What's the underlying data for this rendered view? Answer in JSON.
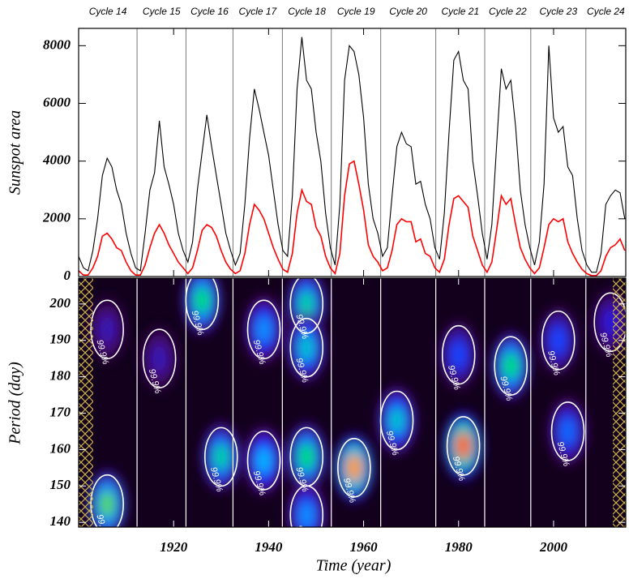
{
  "chart_data": [
    {
      "type": "line",
      "ylabel": "Sunspot area",
      "xlim": [
        1900,
        2015.2
      ],
      "ylim": [
        0,
        8600
      ],
      "yticks": [
        0,
        2000,
        4000,
        6000,
        8000
      ],
      "cycle_labels": [
        "Cycle 14",
        "Cycle 15",
        "Cycle 16",
        "Cycle 17",
        "Cycle 18",
        "Cycle 19",
        "Cycle 20",
        "Cycle 21",
        "Cycle 22",
        "Cycle 23",
        "Cycle 24"
      ],
      "cycle_boundaries": [
        1912.3,
        1922.6,
        1932.5,
        1942.9,
        1953.2,
        1963.6,
        1975.2,
        1985.5,
        1995.2,
        2006.8
      ],
      "x": [
        1900,
        1901,
        1902,
        1903,
        1904,
        1905,
        1906,
        1907,
        1908,
        1909,
        1910,
        1911,
        1912,
        1913,
        1914,
        1915,
        1916,
        1917,
        1918,
        1919,
        1920,
        1921,
        1922,
        1923,
        1924,
        1925,
        1926,
        1927,
        1928,
        1929,
        1930,
        1931,
        1932,
        1933,
        1934,
        1935,
        1936,
        1937,
        1938,
        1939,
        1940,
        1941,
        1942,
        1943,
        1944,
        1945,
        1946,
        1947,
        1948,
        1949,
        1950,
        1951,
        1952,
        1953,
        1954,
        1955,
        1956,
        1957,
        1958,
        1959,
        1960,
        1961,
        1962,
        1963,
        1964,
        1965,
        1966,
        1967,
        1968,
        1969,
        1970,
        1971,
        1972,
        1973,
        1974,
        1975,
        1976,
        1977,
        1978,
        1979,
        1980,
        1981,
        1982,
        1983,
        1984,
        1985,
        1986,
        1987,
        1988,
        1989,
        1990,
        1991,
        1992,
        1993,
        1994,
        1995,
        1996,
        1997,
        1998,
        1999,
        2000,
        2001,
        2002,
        2003,
        2004,
        2005,
        2006,
        2007,
        2008,
        2009,
        2010,
        2011,
        2012,
        2013,
        2014,
        2015
      ],
      "series": [
        {
          "color": "#000000",
          "values": [
            700,
            300,
            200,
            900,
            2000,
            3500,
            4100,
            3800,
            3000,
            2500,
            1500,
            800,
            300,
            200,
            1500,
            3000,
            3600,
            5400,
            3800,
            3200,
            2500,
            1500,
            900,
            500,
            1200,
            3000,
            4300,
            5600,
            4500,
            3500,
            2500,
            1500,
            900,
            400,
            800,
            2500,
            4800,
            6500,
            5800,
            5000,
            4200,
            3000,
            1800,
            900,
            700,
            2800,
            6500,
            8300,
            6800,
            6500,
            5000,
            4000,
            2200,
            1000,
            400,
            2500,
            6800,
            8000,
            7800,
            7000,
            5500,
            3200,
            2000,
            1500,
            700,
            1000,
            2800,
            4500,
            5000,
            4600,
            4500,
            3200,
            3300,
            2500,
            2000,
            1000,
            600,
            2200,
            5000,
            7500,
            7800,
            6800,
            6500,
            4000,
            2800,
            1500,
            600,
            1800,
            4500,
            7200,
            6500,
            6800,
            5200,
            3000,
            1800,
            1000,
            400,
            1200,
            3200,
            8000,
            5500,
            5000,
            5200,
            3800,
            3500,
            2000,
            900,
            400,
            150,
            150,
            800,
            2500,
            2800,
            3000,
            2900,
            2000
          ]
        },
        {
          "color": "#ff0000",
          "values": [
            200,
            50,
            50,
            300,
            700,
            1400,
            1500,
            1300,
            1000,
            900,
            500,
            200,
            50,
            50,
            400,
            1000,
            1500,
            1800,
            1500,
            1100,
            800,
            500,
            300,
            100,
            300,
            900,
            1600,
            1800,
            1700,
            1400,
            900,
            500,
            250,
            100,
            200,
            800,
            1800,
            2500,
            2300,
            2000,
            1500,
            1000,
            600,
            250,
            150,
            800,
            2200,
            3000,
            2600,
            2500,
            1700,
            1400,
            700,
            300,
            100,
            800,
            2800,
            3900,
            4000,
            3200,
            2300,
            1100,
            700,
            500,
            200,
            300,
            900,
            1800,
            2000,
            1900,
            1900,
            1200,
            1300,
            800,
            700,
            300,
            150,
            600,
            1800,
            2700,
            2800,
            2600,
            2400,
            1400,
            900,
            400,
            150,
            500,
            1600,
            2800,
            2500,
            2700,
            1800,
            1000,
            600,
            300,
            100,
            300,
            1000,
            1800,
            2000,
            1900,
            2000,
            1200,
            800,
            500,
            250,
            100,
            30,
            30,
            200,
            700,
            1000,
            1100,
            1300,
            900
          ]
        }
      ]
    },
    {
      "type": "heatmap",
      "xlabel": "Time (year)",
      "ylabel": "Period (day)",
      "xlim": [
        1900,
        2015.2
      ],
      "ylim": [
        138.7,
        207.1
      ],
      "xticks": [
        1920,
        1940,
        1960,
        1980,
        2000
      ],
      "yticks": [
        140,
        150,
        160,
        170,
        180,
        190,
        200
      ],
      "contour_label": "99.9%",
      "blobs": [
        {
          "x": 1906,
          "y": 145,
          "power": 0.75
        },
        {
          "x": 1906,
          "y": 193,
          "power": 0.25
        },
        {
          "x": 1917,
          "y": 185,
          "power": 0.25
        },
        {
          "x": 1926,
          "y": 201,
          "power": 0.7
        },
        {
          "x": 1930,
          "y": 158,
          "power": 0.65
        },
        {
          "x": 1939,
          "y": 157,
          "power": 0.55
        },
        {
          "x": 1939,
          "y": 193,
          "power": 0.5
        },
        {
          "x": 1948,
          "y": 200,
          "power": 0.65
        },
        {
          "x": 1948,
          "y": 188,
          "power": 0.6
        },
        {
          "x": 1948,
          "y": 158,
          "power": 0.7
        },
        {
          "x": 1948,
          "y": 142,
          "power": 0.5
        },
        {
          "x": 1958,
          "y": 155,
          "power": 0.9
        },
        {
          "x": 1967,
          "y": 168,
          "power": 0.6
        },
        {
          "x": 1981,
          "y": 161,
          "power": 0.95
        },
        {
          "x": 1980,
          "y": 186,
          "power": 0.4
        },
        {
          "x": 1991,
          "y": 183,
          "power": 0.7
        },
        {
          "x": 2003,
          "y": 165,
          "power": 0.45
        },
        {
          "x": 2001,
          "y": 190,
          "power": 0.4
        },
        {
          "x": 2012,
          "y": 195,
          "power": 0.3
        }
      ]
    }
  ]
}
